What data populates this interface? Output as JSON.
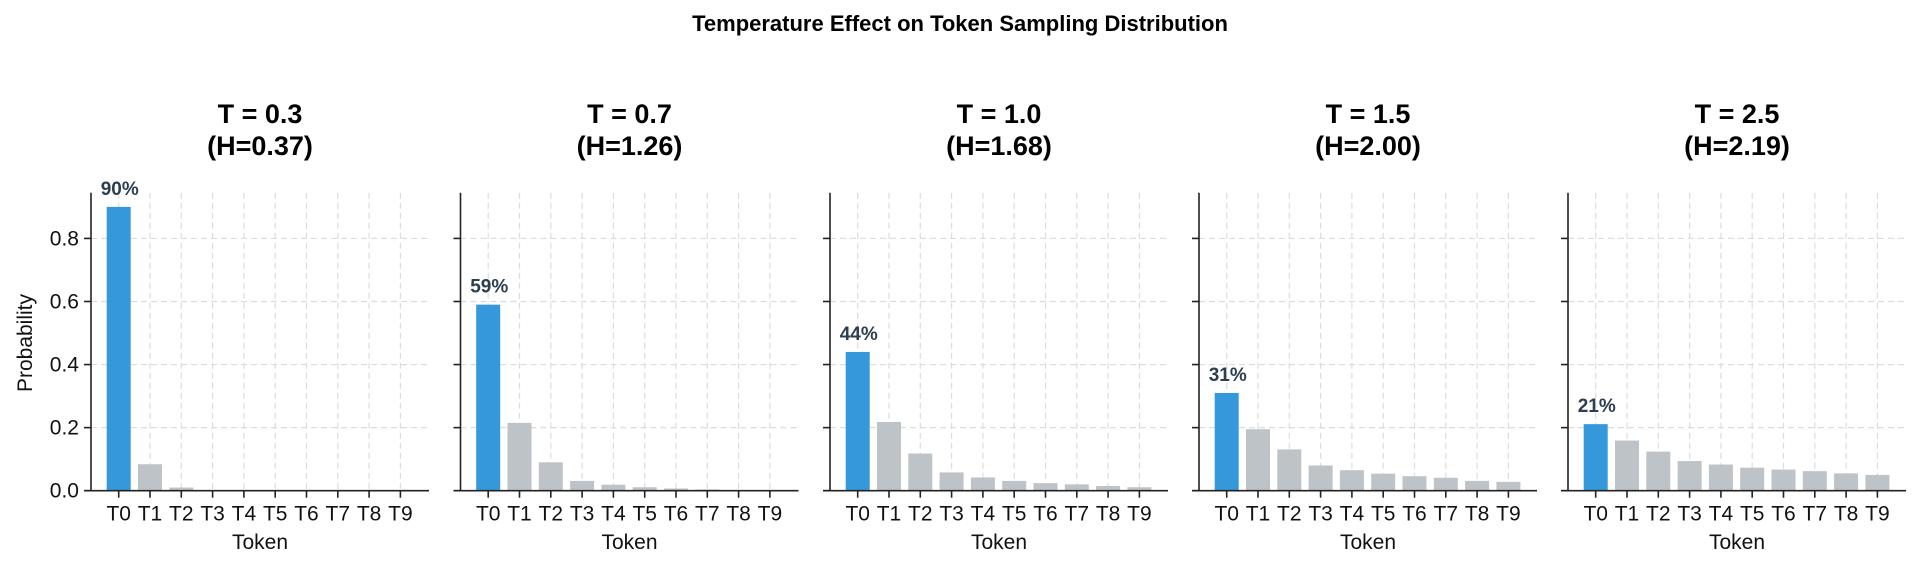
{
  "chart_data": {
    "type": "bar",
    "title": "Temperature Effect on Token Sampling Distribution",
    "panels": [
      {
        "title_line1": "T = 0.3",
        "title_line2": "(H=0.37)",
        "highlight_label": "90%",
        "values": [
          0.9,
          0.084,
          0.01,
          0.001,
          0.0005,
          0.0002,
          0.0001,
          0.0001,
          0.0,
          0.0
        ]
      },
      {
        "title_line1": "T = 0.7",
        "title_line2": "(H=1.26)",
        "highlight_label": "59%",
        "values": [
          0.59,
          0.215,
          0.09,
          0.031,
          0.019,
          0.011,
          0.007,
          0.004,
          0.002,
          0.001
        ]
      },
      {
        "title_line1": "T = 1.0",
        "title_line2": "(H=1.68)",
        "highlight_label": "44%",
        "values": [
          0.44,
          0.218,
          0.118,
          0.058,
          0.042,
          0.031,
          0.024,
          0.02,
          0.015,
          0.011
        ]
      },
      {
        "title_line1": "T = 1.5",
        "title_line2": "(H=2.00)",
        "highlight_label": "31%",
        "values": [
          0.31,
          0.195,
          0.131,
          0.08,
          0.065,
          0.054,
          0.046,
          0.041,
          0.031,
          0.028
        ]
      },
      {
        "title_line1": "T = 2.5",
        "title_line2": "(H=2.19)",
        "highlight_label": "21%",
        "values": [
          0.211,
          0.159,
          0.124,
          0.094,
          0.083,
          0.073,
          0.067,
          0.062,
          0.055,
          0.05
        ]
      }
    ],
    "categories": [
      "T0",
      "T1",
      "T2",
      "T3",
      "T4",
      "T5",
      "T6",
      "T7",
      "T8",
      "T9"
    ],
    "xlabel": "Token",
    "ylabel": "Probability",
    "yticks": [
      "0.0",
      "0.2",
      "0.4",
      "0.6",
      "0.8"
    ],
    "ylim": [
      0,
      0.945
    ],
    "grid": true,
    "colors": {
      "highlight": "#3498db",
      "other": "#bdc3c7",
      "bar_label": "#2c3e50"
    }
  }
}
